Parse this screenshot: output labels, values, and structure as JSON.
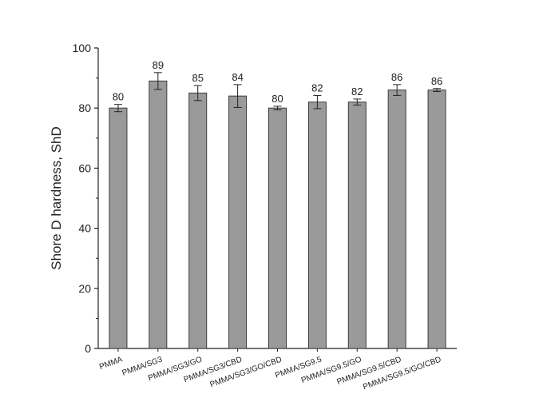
{
  "chart_data": {
    "type": "bar",
    "title": "",
    "xlabel": "",
    "ylabel": "Shore D hardness, ShD",
    "ylim": [
      0,
      100
    ],
    "yticks": [
      0,
      20,
      40,
      60,
      80,
      100
    ],
    "grid": false,
    "bar_color": "#9a9a9a",
    "bar_edge_color": "#3a3a3a",
    "categories": [
      "PMMA",
      "PMMA/SG3",
      "PMMA/SG3/GO",
      "PMMA/SG3/CBD",
      "PMMA/SG3/GO/CBD",
      "PMMA/SG9.5",
      "PMMA/SG9.5/GO",
      "PMMA/SG9.5/CBD",
      "PMMA/SG9.5/GO/CBD"
    ],
    "values": [
      80,
      89,
      85,
      84,
      80,
      82,
      82,
      86,
      86
    ],
    "value_labels": [
      "80",
      "89",
      "85",
      "84",
      "80",
      "82",
      "82",
      "86",
      "86"
    ],
    "errors": [
      1.2,
      2.8,
      2.5,
      3.8,
      0.6,
      2.2,
      1.0,
      1.8,
      0.5
    ]
  }
}
